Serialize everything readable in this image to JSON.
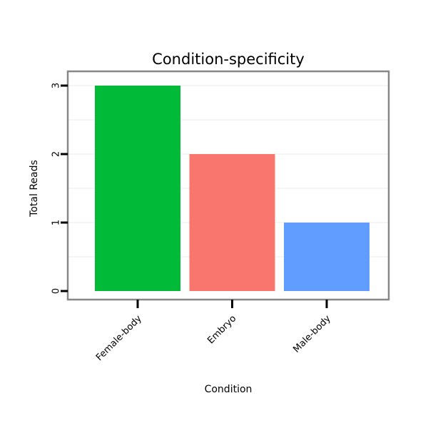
{
  "chart_data": {
    "type": "bar",
    "title": "Condition-specificity",
    "xlabel": "Condition",
    "ylabel": "Total Reads",
    "categories": [
      "Female-body",
      "Embryo",
      "Male-body"
    ],
    "values": [
      3,
      2,
      1
    ],
    "bar_colors": [
      "#00BA38",
      "#F8766D",
      "#619CFF"
    ],
    "yticks": [
      0,
      1,
      2,
      3
    ],
    "ylim": [
      0,
      3
    ],
    "grid": "faint horizontal gridlines at 0.5 intervals",
    "legend": "none",
    "frame_color": "#878787",
    "grid_color": "#ededed",
    "tick_color": "#000000"
  }
}
